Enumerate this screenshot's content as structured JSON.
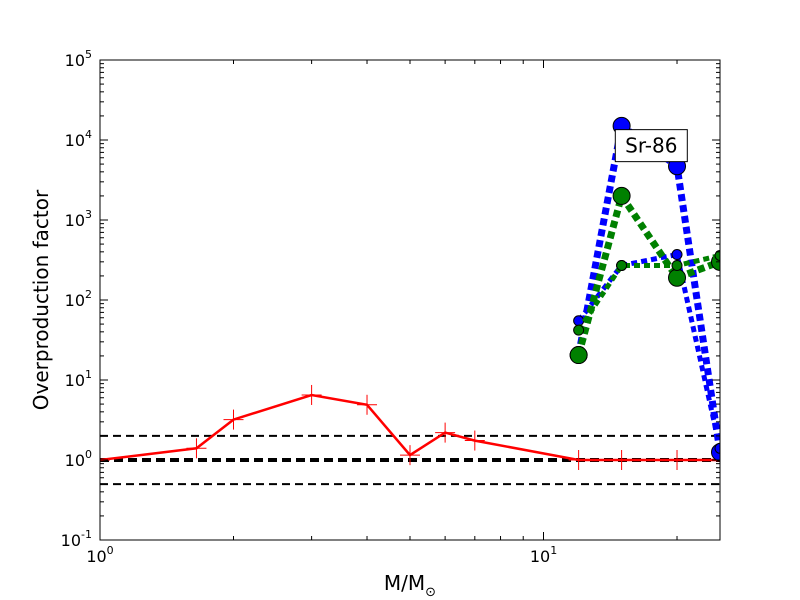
{
  "chart_data": {
    "type": "line",
    "title": "",
    "xlabel": "M/M",
    "xlabel_sub": "⊙",
    "ylabel": "Overproduction factor",
    "xscale": "log",
    "yscale": "log",
    "xlim": [
      1,
      25
    ],
    "ylim": [
      0.1,
      100000
    ],
    "x_ticks": [
      {
        "value": 1,
        "base": "10",
        "exp": "0"
      },
      {
        "value": 10,
        "base": "10",
        "exp": "1"
      }
    ],
    "y_ticks": [
      {
        "value": 0.1,
        "base": "10",
        "exp": "-1"
      },
      {
        "value": 1,
        "base": "10",
        "exp": "0"
      },
      {
        "value": 10,
        "base": "10",
        "exp": "1"
      },
      {
        "value": 100,
        "base": "10",
        "exp": "2"
      },
      {
        "value": 1000,
        "base": "10",
        "exp": "3"
      },
      {
        "value": 10000,
        "base": "10",
        "exp": "4"
      },
      {
        "value": 100000,
        "base": "10",
        "exp": "5"
      }
    ],
    "hlines": [
      {
        "y": 2.0,
        "style": "dashed",
        "weight": "thin"
      },
      {
        "y": 1.0,
        "style": "dashed",
        "weight": "thick"
      },
      {
        "y": 0.5,
        "style": "dashed",
        "weight": "thin"
      }
    ],
    "series": [
      {
        "color": "#ff0000",
        "line": "solid",
        "marker": "plus",
        "points": [
          [
            1.0,
            1.0
          ],
          [
            1.65,
            1.4
          ],
          [
            2.0,
            3.2
          ],
          [
            3.0,
            6.5
          ],
          [
            4.0,
            4.9
          ],
          [
            5.0,
            1.15
          ],
          [
            6.0,
            2.2
          ],
          [
            7.0,
            1.75
          ],
          [
            12.0,
            1.0
          ],
          [
            15.0,
            1.0
          ],
          [
            20.0,
            1.0
          ],
          [
            25.0,
            1.0
          ]
        ]
      },
      {
        "color": "#0000ff",
        "line": "dotted",
        "marker": "circle",
        "points": [
          [
            12.0,
            20.5
          ],
          [
            15.0,
            15000
          ],
          [
            20.0,
            4700
          ],
          [
            25.0,
            1.25
          ]
        ]
      },
      {
        "color": "#0000ff",
        "line": "dotted",
        "marker": "circle-small",
        "points": [
          [
            12.0,
            55
          ],
          [
            15.0,
            270
          ],
          [
            20.0,
            370
          ],
          [
            25.0,
            1.4
          ]
        ]
      },
      {
        "color": "#008000",
        "line": "dotted",
        "marker": "circle",
        "points": [
          [
            12.0,
            20.5
          ],
          [
            15.0,
            2000
          ],
          [
            20.0,
            190
          ],
          [
            25.0,
            300
          ]
        ]
      },
      {
        "color": "#008000",
        "line": "dotted",
        "marker": "circle-small",
        "points": [
          [
            12.0,
            42
          ],
          [
            15.0,
            270
          ],
          [
            20.0,
            270
          ],
          [
            25.0,
            360
          ]
        ]
      }
    ],
    "annotation": {
      "text": "Sr-86",
      "x": 17.5,
      "y": 8500
    },
    "grid": false,
    "legend": "none"
  }
}
